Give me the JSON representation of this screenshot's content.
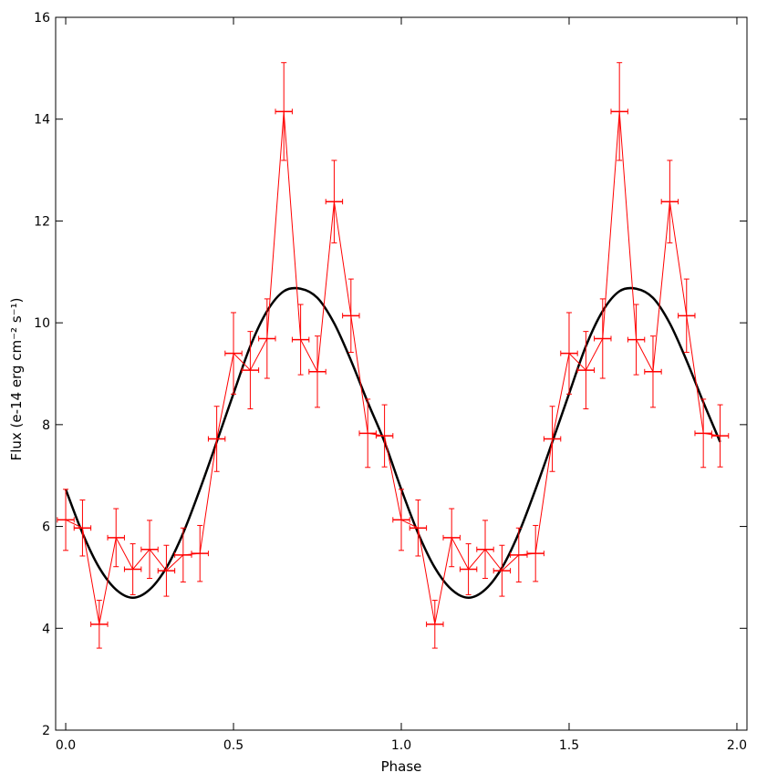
{
  "chart_data": {
    "type": "line",
    "title": "",
    "xlabel": "Phase",
    "ylabel": "Flux (e-14 erg cm⁻² s⁻¹)",
    "xlim": [
      -0.03,
      2.03
    ],
    "ylim": [
      2,
      16
    ],
    "xticks": [
      0.0,
      0.5,
      1.0,
      1.5,
      2.0
    ],
    "xtick_labels": [
      "0.0",
      "0.5",
      "1.0",
      "1.5",
      "2.0"
    ],
    "yticks": [
      2,
      4,
      6,
      8,
      10,
      12,
      14,
      16
    ],
    "ytick_labels": [
      "2",
      "4",
      "6",
      "8",
      "10",
      "12",
      "14",
      "16"
    ],
    "grid": false,
    "series": [
      {
        "type": "errorbar",
        "color": "#ff0000",
        "x": [
          0.0,
          0.05,
          0.1,
          0.15,
          0.2,
          0.25,
          0.3,
          0.35,
          0.4,
          0.45,
          0.5,
          0.55,
          0.6,
          0.65,
          0.7,
          0.75,
          0.8,
          0.85,
          0.9,
          0.95,
          1.0,
          1.05,
          1.1,
          1.15,
          1.2,
          1.25,
          1.3,
          1.35,
          1.4,
          1.45,
          1.5,
          1.55,
          1.6,
          1.65,
          1.7,
          1.75,
          1.8,
          1.85,
          1.9,
          1.95
        ],
        "y": [
          6.13,
          5.97,
          4.08,
          5.78,
          5.16,
          5.55,
          5.13,
          5.44,
          5.47,
          7.72,
          9.4,
          9.07,
          9.69,
          14.15,
          9.67,
          9.04,
          12.38,
          10.14,
          7.83,
          7.78,
          6.13,
          5.97,
          4.08,
          5.78,
          5.16,
          5.55,
          5.13,
          5.44,
          5.47,
          7.72,
          9.4,
          9.07,
          9.69,
          14.15,
          9.67,
          9.04,
          12.38,
          10.14,
          7.83,
          7.78
        ],
        "yerr": [
          0.6,
          0.55,
          0.47,
          0.57,
          0.5,
          0.57,
          0.5,
          0.53,
          0.55,
          0.64,
          0.8,
          0.76,
          0.78,
          0.96,
          0.69,
          0.7,
          0.81,
          0.72,
          0.67,
          0.61,
          0.6,
          0.55,
          0.47,
          0.57,
          0.5,
          0.57,
          0.5,
          0.53,
          0.55,
          0.64,
          0.8,
          0.76,
          0.78,
          0.96,
          0.69,
          0.7,
          0.81,
          0.72,
          0.67,
          0.61
        ],
        "xerr": 0.025
      },
      {
        "type": "line",
        "color": "#000000",
        "model": "sinusoid",
        "x": [
          0.0,
          0.05,
          0.1,
          0.15,
          0.2,
          0.25,
          0.3,
          0.35,
          0.4,
          0.45,
          0.5,
          0.55,
          0.6,
          0.65,
          0.7,
          0.75,
          0.8,
          0.85,
          0.9,
          0.95,
          1.0,
          1.05,
          1.1,
          1.15,
          1.2,
          1.25,
          1.3,
          1.35,
          1.4,
          1.45,
          1.5,
          1.55,
          1.6,
          1.65,
          1.7,
          1.75,
          1.8,
          1.85,
          1.9,
          1.95
        ],
        "y": [
          6.73,
          5.87,
          5.19,
          4.76,
          4.6,
          4.76,
          5.19,
          5.87,
          6.73,
          7.66,
          8.61,
          9.54,
          10.23,
          10.62,
          10.67,
          10.49,
          9.99,
          9.26,
          8.44,
          7.66,
          6.73,
          5.87,
          5.19,
          4.76,
          4.6,
          4.76,
          5.19,
          5.87,
          6.73,
          7.66,
          8.61,
          9.54,
          10.23,
          10.62,
          10.67,
          10.49,
          9.99,
          9.26,
          8.44,
          7.66
        ]
      }
    ]
  }
}
